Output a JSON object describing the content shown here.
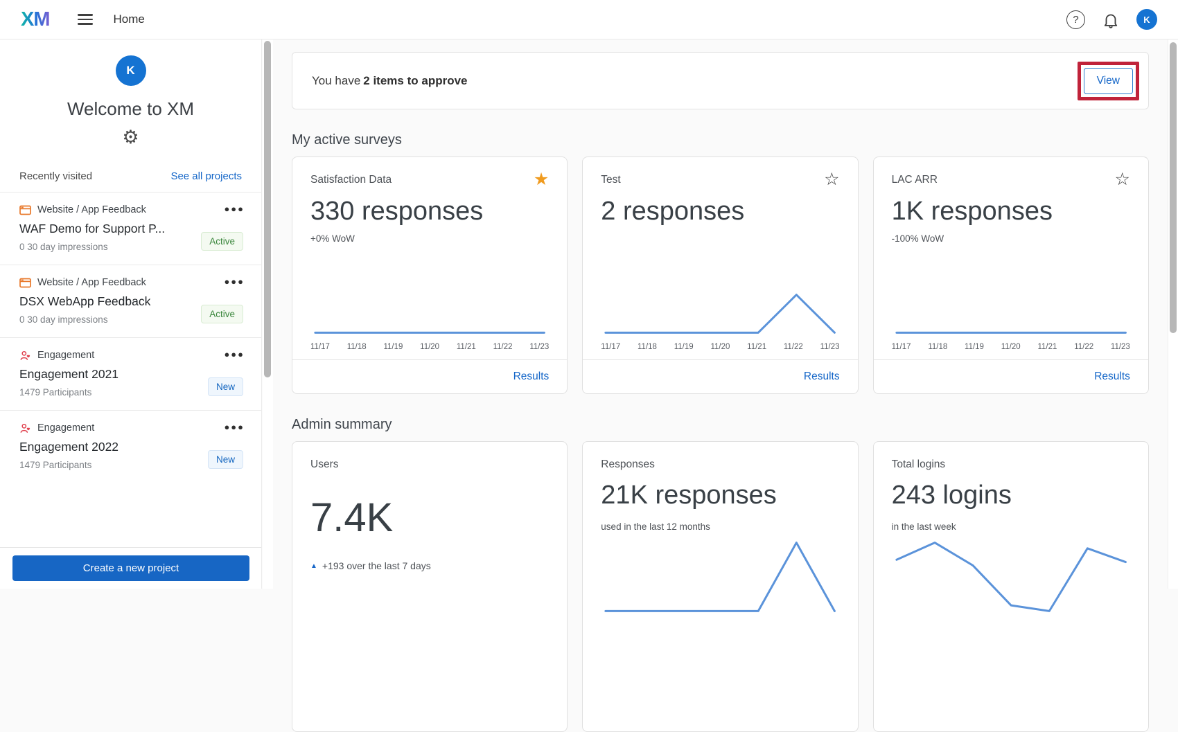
{
  "topbar": {
    "logo": "XM",
    "title": "Home",
    "help_icon": "question-mark-circle",
    "notifications_icon": "bell",
    "avatar_initial": "K"
  },
  "sidebar": {
    "avatar_initial": "K",
    "welcome": "Welcome to XM",
    "gear_icon": "settings-gear",
    "recently_visited": "Recently visited",
    "see_all_projects": "See all projects",
    "projects": [
      {
        "category": "Website / App Feedback",
        "icon": "website-app-feedback",
        "name": "WAF Demo for Support P...",
        "meta": "0 30 day impressions",
        "badge": "Active"
      },
      {
        "category": "Website / App Feedback",
        "icon": "website-app-feedback",
        "name": "DSX WebApp Feedback",
        "meta": "0 30 day impressions",
        "badge": "Active"
      },
      {
        "category": "Engagement",
        "icon": "engagement-person-heart",
        "name": "Engagement 2021",
        "meta": "1479 Participants",
        "badge": "New"
      },
      {
        "category": "Engagement",
        "icon": "engagement-person-heart",
        "name": "Engagement 2022",
        "meta": "1479 Participants",
        "badge": "New"
      }
    ],
    "create_button": "Create a new project"
  },
  "main": {
    "banner": {
      "prefix": "You have",
      "bold": "2 items to approve",
      "view_label": "View"
    },
    "active_surveys_title": "My active surveys",
    "admin_summary_title": "Admin summary",
    "dates": [
      "11/17",
      "11/18",
      "11/19",
      "11/20",
      "11/21",
      "11/22",
      "11/23"
    ],
    "survey_cards": [
      {
        "title": "Satisfaction Data",
        "star": "filled",
        "metric": "330 responses",
        "wow": "+0% WoW",
        "results_label": "Results",
        "chart_values": [
          0,
          0,
          0,
          0,
          0,
          0,
          0
        ]
      },
      {
        "title": "Test",
        "star": "outline",
        "metric": "2 responses",
        "wow": "",
        "results_label": "Results",
        "chart_values": [
          0,
          0,
          0,
          0,
          0,
          2,
          0
        ]
      },
      {
        "title": "LAC ARR",
        "star": "outline",
        "metric": "1K responses",
        "wow": "-100% WoW",
        "results_label": "Results",
        "chart_values": [
          0,
          0,
          0,
          0,
          0,
          0,
          0
        ]
      }
    ],
    "admin_cards": [
      {
        "title": "Users",
        "metric": "7.4K",
        "delta": "+193 over the last 7 days",
        "delta_direction": "up"
      },
      {
        "title": "Responses",
        "metric": "21K responses",
        "caption": "used in the last 12 months",
        "chart_values": [
          0,
          0,
          0,
          0,
          0,
          8,
          0
        ]
      },
      {
        "title": "Total logins",
        "metric": "243 logins",
        "caption": "in the last week",
        "chart_values": [
          50,
          65,
          45,
          10,
          5,
          60,
          48
        ]
      }
    ]
  },
  "chart_data": [
    {
      "name": "Satisfaction Data responses by day",
      "type": "line",
      "x": [
        "11/17",
        "11/18",
        "11/19",
        "11/20",
        "11/21",
        "11/22",
        "11/23"
      ],
      "values": [
        0,
        0,
        0,
        0,
        0,
        0,
        0
      ],
      "note": "flat line at baseline",
      "line_color": "#5b93da"
    },
    {
      "name": "Test responses by day",
      "type": "line",
      "x": [
        "11/17",
        "11/18",
        "11/19",
        "11/20",
        "11/21",
        "11/22",
        "11/23"
      ],
      "values": [
        0,
        0,
        0,
        0,
        0,
        2,
        0
      ],
      "note": "peak at 11/22",
      "line_color": "#5b93da"
    },
    {
      "name": "LAC ARR responses by day",
      "type": "line",
      "x": [
        "11/17",
        "11/18",
        "11/19",
        "11/20",
        "11/21",
        "11/22",
        "11/23"
      ],
      "values": [
        0,
        0,
        0,
        0,
        0,
        0,
        0
      ],
      "note": "flat line at baseline",
      "line_color": "#5b93da"
    },
    {
      "name": "Responses trend (partially visible)",
      "type": "line",
      "values": [
        0,
        0,
        0,
        0,
        0,
        8,
        0
      ],
      "note": "only peak tip visible at viewport bottom",
      "line_color": "#5b93da"
    },
    {
      "name": "Total logins trend (partially visible)",
      "type": "line",
      "values": [
        50,
        65,
        45,
        10,
        5,
        60,
        48
      ],
      "note": "zigzag, cut off by viewport bottom",
      "line_color": "#5b93da"
    }
  ],
  "colors": {
    "accent_blue": "#1466c8",
    "button_blue": "#1766c4",
    "avatar_blue": "#1573d2",
    "chart_line": "#5b93da",
    "star_orange": "#f09b1f",
    "active_green": "#38853a",
    "annotation_red": "#c0233a",
    "logo_gradient": [
      "#10b9a6",
      "#2173d6",
      "#7b5ed2"
    ]
  }
}
